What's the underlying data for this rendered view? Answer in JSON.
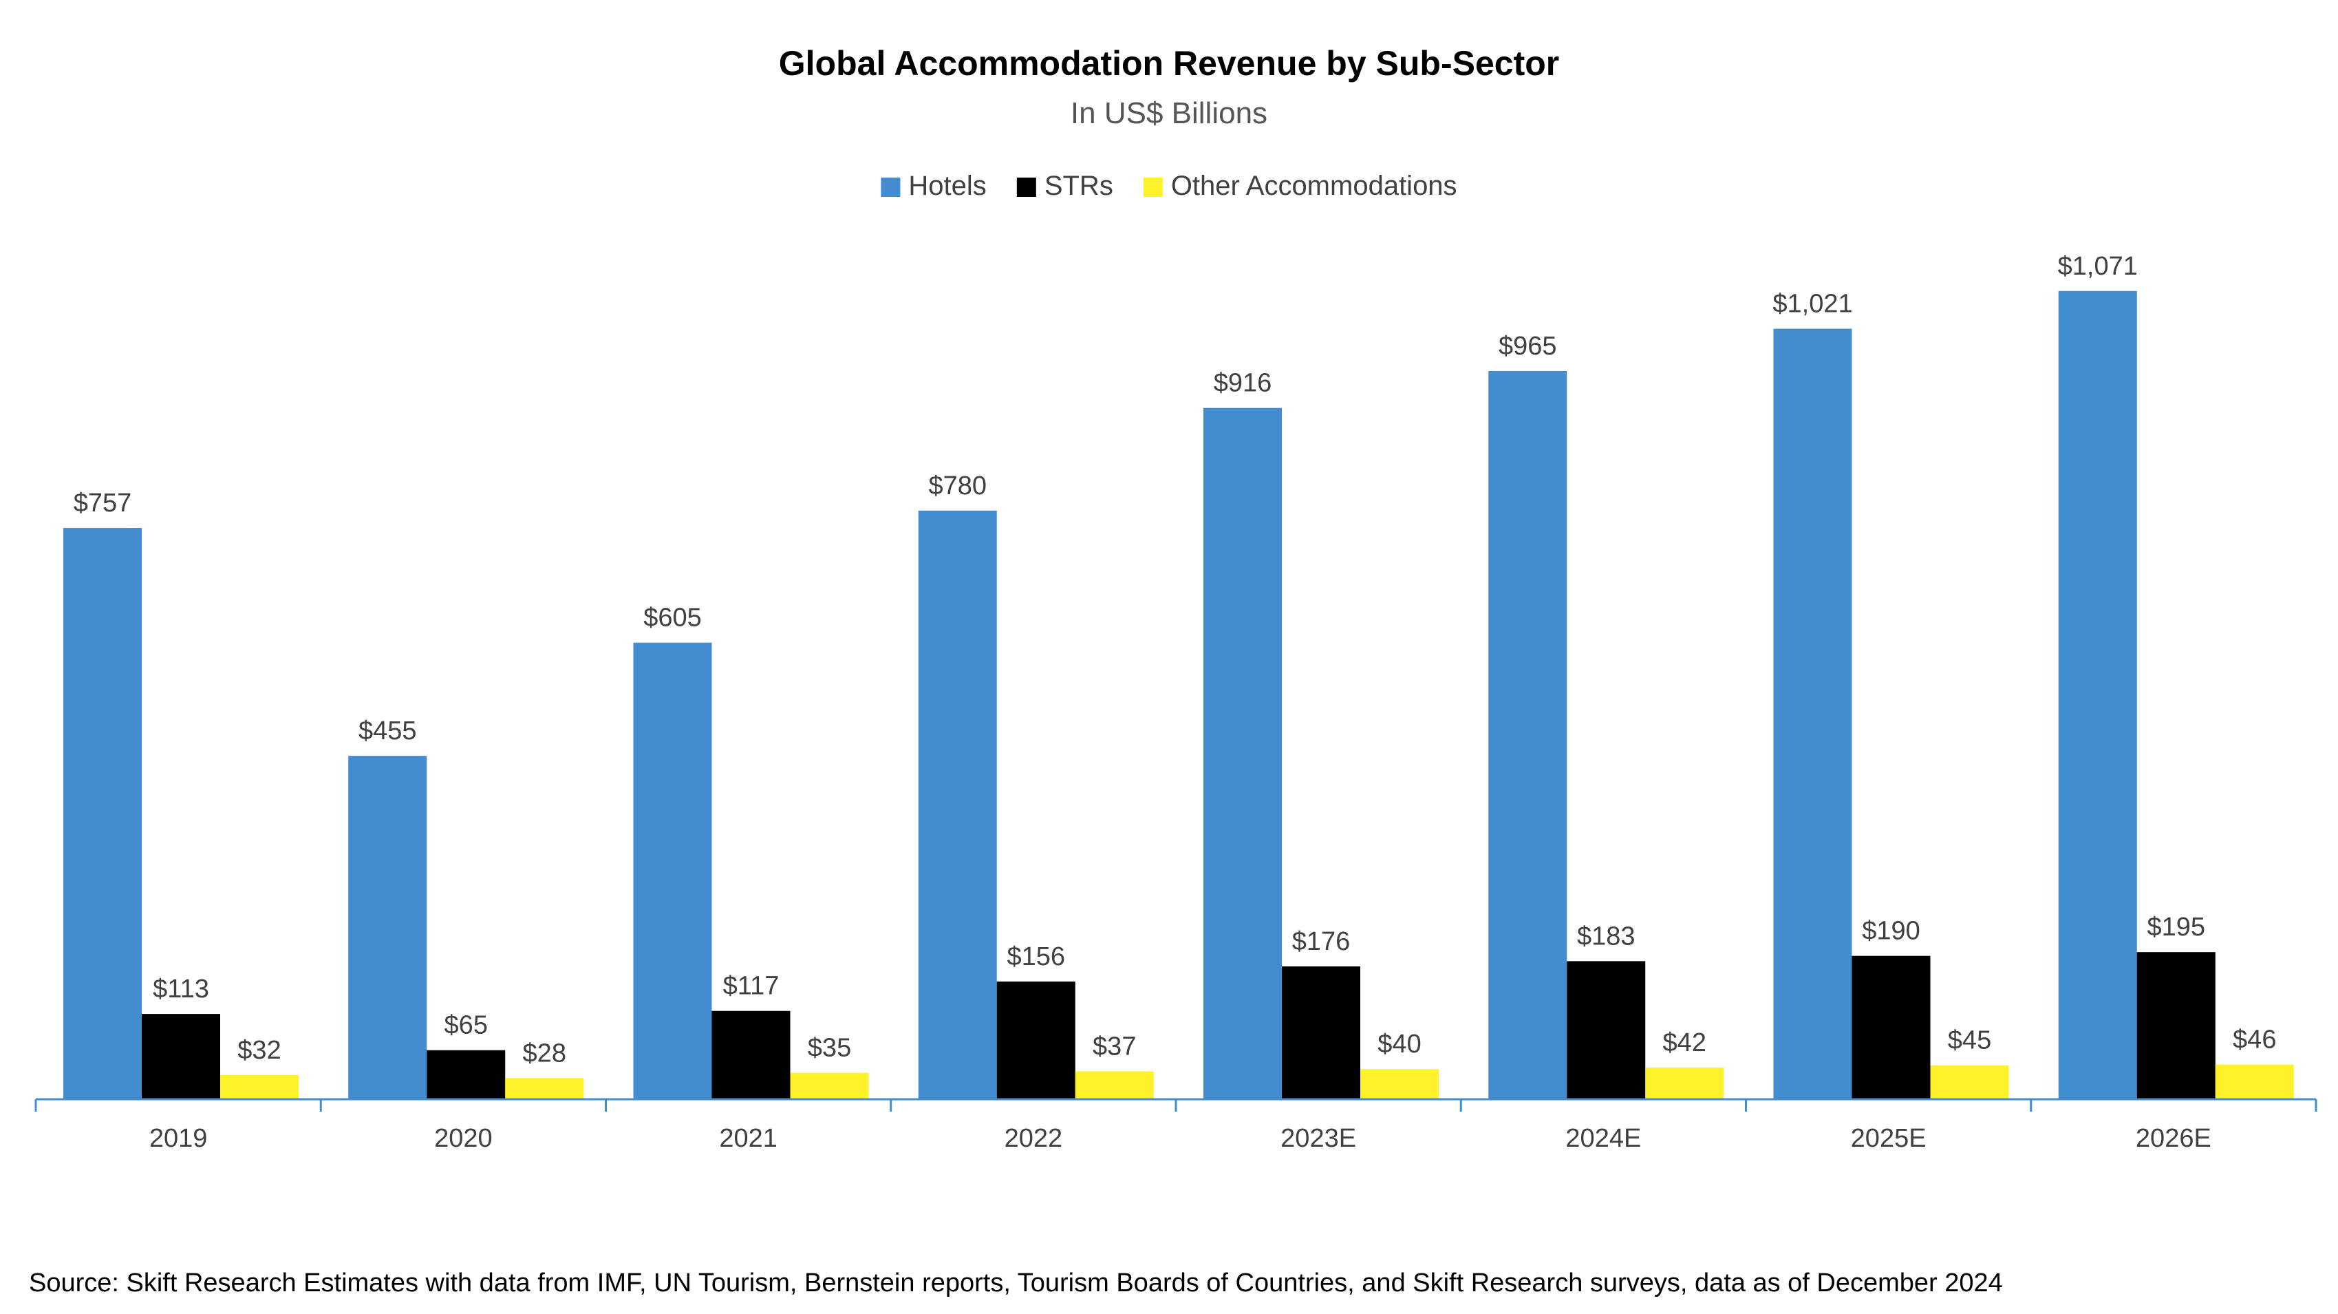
{
  "chart_data": {
    "type": "bar",
    "title": "Global Accommodation Revenue by Sub-Sector",
    "subtitle": "In US$ Billions",
    "xlabel": "",
    "ylabel": "",
    "categories": [
      "2019",
      "2020",
      "2021",
      "2022",
      "2023E",
      "2024E",
      "2025E",
      "2026E"
    ],
    "series": [
      {
        "name": "Hotels",
        "color": "#438CCF",
        "values": [
          757,
          455,
          605,
          780,
          916,
          965,
          1021,
          1071
        ],
        "labels": [
          "$757",
          "$455",
          "$605",
          "$780",
          "$916",
          "$965",
          "$1,021",
          "$1,071"
        ]
      },
      {
        "name": "STRs",
        "color": "#000000",
        "values": [
          113,
          65,
          117,
          156,
          176,
          183,
          190,
          195
        ],
        "labels": [
          "$113",
          "$65",
          "$117",
          "$156",
          "$176",
          "$183",
          "$190",
          "$195"
        ]
      },
      {
        "name": "Other Accommodations",
        "color": "#FFF22B",
        "values": [
          32,
          28,
          35,
          37,
          40,
          42,
          45,
          46
        ],
        "labels": [
          "$32",
          "$28",
          "$35",
          "$37",
          "$40",
          "$42",
          "$45",
          "$46"
        ]
      }
    ],
    "ylim": [
      0,
      1110
    ],
    "grid": false,
    "legend_position": "top-center",
    "axis_color": "#438CCF"
  },
  "source": "Source: Skift Research Estimates with data from IMF, UN Tourism, Bernstein reports, Tourism Boards of Countries, and Skift Research surveys, data as of December 2024"
}
